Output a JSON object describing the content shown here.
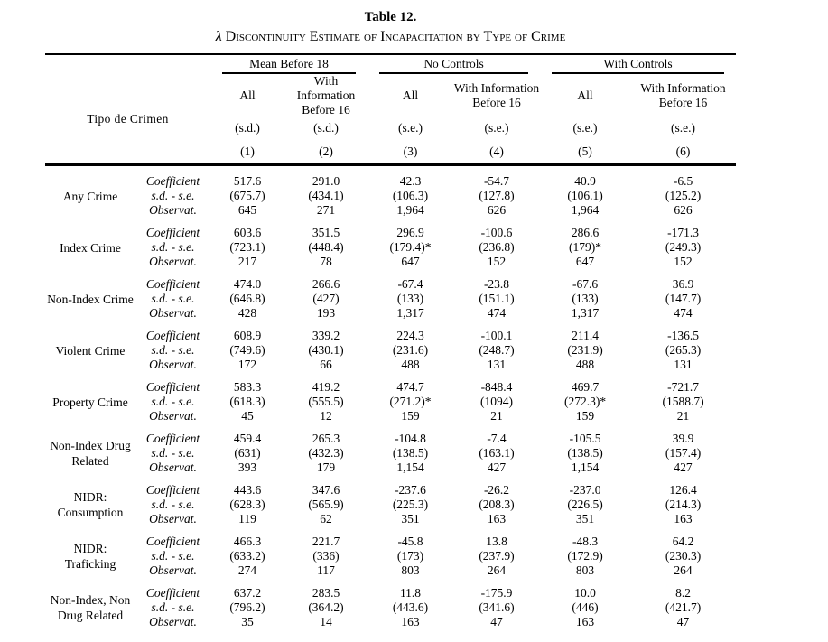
{
  "page": {
    "title": "Table 12.",
    "subtitle_symbol": "λ",
    "subtitle": " Discontinuity Estimate of Incapacitation by Type of Crime"
  },
  "table": {
    "corner_label": "Tipo de Crimen",
    "groups": [
      {
        "label": "Mean Before 18"
      },
      {
        "label": "No Controls"
      },
      {
        "label": "With Controls"
      }
    ],
    "subheaders": [
      {
        "line1": "All",
        "line2": ""
      },
      {
        "line1": "With Information",
        "line2": "Before 16"
      },
      {
        "line1": "All",
        "line2": ""
      },
      {
        "line1": "With Information",
        "line2": "Before 16"
      },
      {
        "line1": "All",
        "line2": ""
      },
      {
        "line1": "With Information",
        "line2": "Before 16"
      }
    ],
    "units": [
      "(s.d.)",
      "(s.d.)",
      "(s.e.)",
      "(s.e.)",
      "(s.e.)",
      "(s.e.)"
    ],
    "column_numbers": [
      "(1)",
      "(2)",
      "(3)",
      "(4)",
      "(5)",
      "(6)"
    ],
    "stat_labels": [
      "Coefficient",
      "s.d. - s.e.",
      "Observat."
    ],
    "rows": [
      {
        "crime": "Any Crime",
        "coefficient": [
          "517.6",
          "291.0",
          "42.3",
          "-54.7",
          "40.9",
          "-6.5"
        ],
        "sd_se": [
          "(675.7)",
          "(434.1)",
          "(106.3)",
          "(127.8)",
          "(106.1)",
          "(125.2)"
        ],
        "observations": [
          "645",
          "271",
          "1,964",
          "626",
          "1,964",
          "626"
        ]
      },
      {
        "crime": "Index Crime",
        "coefficient": [
          "603.6",
          "351.5",
          "296.9",
          "-100.6",
          "286.6",
          "-171.3"
        ],
        "sd_se": [
          "(723.1)",
          "(448.4)",
          "(179.4)*",
          "(236.8)",
          "(179)*",
          "(249.3)"
        ],
        "observations": [
          "217",
          "78",
          "647",
          "152",
          "647",
          "152"
        ]
      },
      {
        "crime": "Non-Index Crime",
        "coefficient": [
          "474.0",
          "266.6",
          "-67.4",
          "-23.8",
          "-67.6",
          "36.9"
        ],
        "sd_se": [
          "(646.8)",
          "(427)",
          "(133)",
          "(151.1)",
          "(133)",
          "(147.7)"
        ],
        "observations": [
          "428",
          "193",
          "1,317",
          "474",
          "1,317",
          "474"
        ]
      },
      {
        "crime": "Violent Crime",
        "coefficient": [
          "608.9",
          "339.2",
          "224.3",
          "-100.1",
          "211.4",
          "-136.5"
        ],
        "sd_se": [
          "(749.6)",
          "(430.1)",
          "(231.6)",
          "(248.7)",
          "(231.9)",
          "(265.3)"
        ],
        "observations": [
          "172",
          "66",
          "488",
          "131",
          "488",
          "131"
        ]
      },
      {
        "crime": "Property Crime",
        "coefficient": [
          "583.3",
          "419.2",
          "474.7",
          "-848.4",
          "469.7",
          "-721.7"
        ],
        "sd_se": [
          "(618.3)",
          "(555.5)",
          "(271.2)*",
          "(1094)",
          "(272.3)*",
          "(1588.7)"
        ],
        "observations": [
          "45",
          "12",
          "159",
          "21",
          "159",
          "21"
        ]
      },
      {
        "crime": "Non-Index Drug\nRelated",
        "coefficient": [
          "459.4",
          "265.3",
          "-104.8",
          "-7.4",
          "-105.5",
          "39.9"
        ],
        "sd_se": [
          "(631)",
          "(432.3)",
          "(138.5)",
          "(163.1)",
          "(138.5)",
          "(157.4)"
        ],
        "observations": [
          "393",
          "179",
          "1,154",
          "427",
          "1,154",
          "427"
        ]
      },
      {
        "crime": "NIDR:\nConsumption",
        "coefficient": [
          "443.6",
          "347.6",
          "-237.6",
          "-26.2",
          "-237.0",
          "126.4"
        ],
        "sd_se": [
          "(628.3)",
          "(565.9)",
          "(225.3)",
          "(208.3)",
          "(226.5)",
          "(214.3)"
        ],
        "observations": [
          "119",
          "62",
          "351",
          "163",
          "351",
          "163"
        ]
      },
      {
        "crime": "NIDR:\nTraficking",
        "coefficient": [
          "466.3",
          "221.7",
          "-45.8",
          "13.8",
          "-48.3",
          "64.2"
        ],
        "sd_se": [
          "(633.2)",
          "(336)",
          "(173)",
          "(237.9)",
          "(172.9)",
          "(230.3)"
        ],
        "observations": [
          "274",
          "117",
          "803",
          "264",
          "803",
          "264"
        ]
      },
      {
        "crime": "Non-Index, Non\nDrug Related",
        "coefficient": [
          "637.2",
          "283.5",
          "11.8",
          "-175.9",
          "10.0",
          "8.2"
        ],
        "sd_se": [
          "(796.2)",
          "(364.2)",
          "(443.6)",
          "(341.6)",
          "(446)",
          "(421.7)"
        ],
        "observations": [
          "35",
          "14",
          "163",
          "47",
          "163",
          "47"
        ]
      }
    ]
  }
}
